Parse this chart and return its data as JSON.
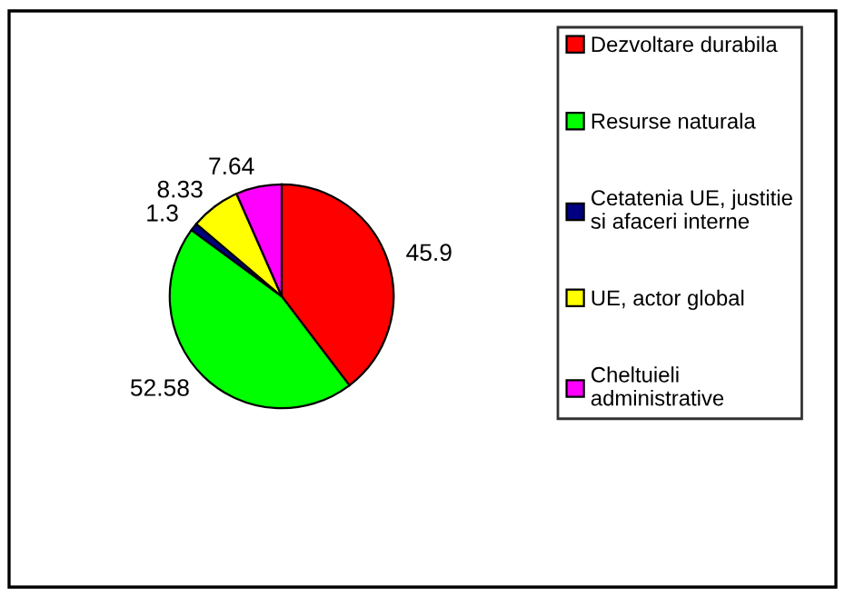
{
  "chart_data": {
    "type": "pie",
    "categories": [
      "Dezvoltare durabila",
      "Resurse naturala",
      "Cetatenia UE, justitie si afaceri interne",
      "UE, actor global",
      "Cheltuieli administrative"
    ],
    "values": [
      45.9,
      52.58,
      1.3,
      8.33,
      7.64
    ],
    "colors": [
      "#ff0000",
      "#00ff00",
      "#000080",
      "#ffff00",
      "#ff00ff"
    ],
    "data_labels": true,
    "legend": "right"
  }
}
